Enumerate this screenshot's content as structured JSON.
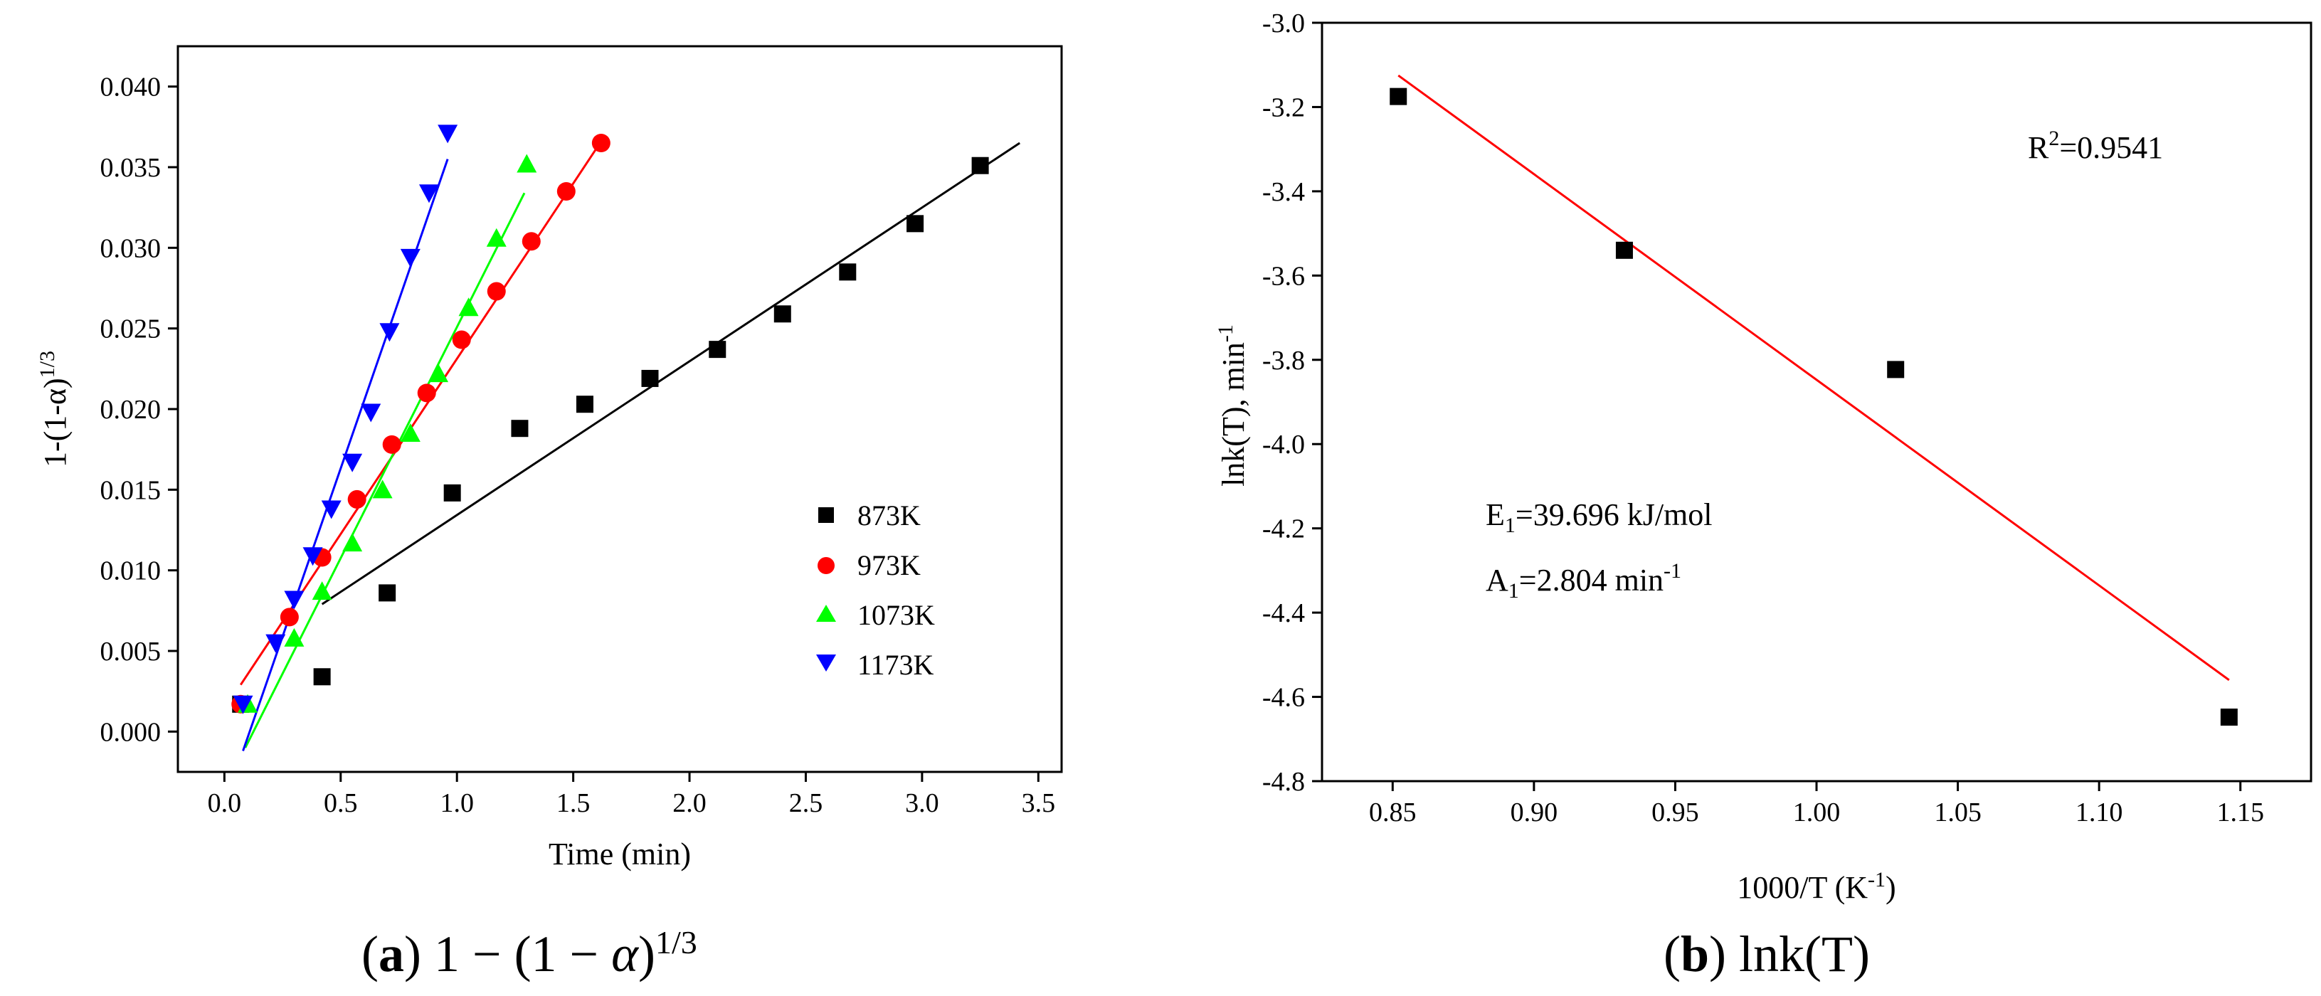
{
  "chart_data": [
    {
      "type": "scatter",
      "panel": "a",
      "xlabel": "Time (min)",
      "ylabel_base": "1-(1-α)",
      "ylabel_sup": "1/3",
      "xlim": [
        -0.2,
        3.6
      ],
      "ylim": [
        -0.0025,
        0.0425
      ],
      "xticks": [
        "0.0",
        "0.5",
        "1.0",
        "1.5",
        "2.0",
        "2.5",
        "3.0",
        "3.5"
      ],
      "yticks": [
        "0.000",
        "0.005",
        "0.010",
        "0.015",
        "0.020",
        "0.025",
        "0.030",
        "0.035",
        "0.040"
      ],
      "series": [
        {
          "name": "873K",
          "marker": "square",
          "color": "#000000",
          "x": [
            0.07,
            0.42,
            0.7,
            0.98,
            1.27,
            1.55,
            1.83,
            2.12,
            2.4,
            2.68,
            2.97,
            3.25
          ],
          "y": [
            0.0017,
            0.0034,
            0.0086,
            0.0148,
            0.0188,
            0.0203,
            0.0219,
            0.0237,
            0.0259,
            0.0285,
            0.0315,
            0.0351
          ],
          "fit": {
            "x": [
              0.42,
              3.42
            ],
            "y": [
              0.0079,
              0.0365
            ]
          }
        },
        {
          "name": "973K",
          "marker": "circle",
          "color": "#ff0000",
          "x": [
            0.07,
            0.28,
            0.42,
            0.57,
            0.72,
            0.87,
            1.02,
            1.17,
            1.32,
            1.47,
            1.62
          ],
          "y": [
            0.0017,
            0.0071,
            0.0108,
            0.0144,
            0.0178,
            0.021,
            0.0243,
            0.0273,
            0.0304,
            0.0335,
            0.0365
          ],
          "fit": {
            "x": [
              0.07,
              1.62
            ],
            "y": [
              0.0029,
              0.0366
            ]
          }
        },
        {
          "name": "1073K",
          "marker": "triangle-up",
          "color": "#00ff00",
          "x": [
            0.1,
            0.3,
            0.42,
            0.55,
            0.68,
            0.8,
            0.92,
            1.05,
            1.17,
            1.3
          ],
          "y": [
            0.0017,
            0.0058,
            0.0087,
            0.0117,
            0.015,
            0.0185,
            0.0222,
            0.0263,
            0.0306,
            0.0352
          ],
          "fit": {
            "x": [
              0.09,
              1.29
            ],
            "y": [
              -0.001,
              0.0334
            ]
          }
        },
        {
          "name": "1173K",
          "marker": "triangle-down",
          "color": "#0000ff",
          "x": [
            0.08,
            0.22,
            0.3,
            0.38,
            0.46,
            0.55,
            0.63,
            0.71,
            0.8,
            0.88,
            0.96
          ],
          "y": [
            0.0017,
            0.0055,
            0.0082,
            0.0109,
            0.0138,
            0.0167,
            0.0198,
            0.0248,
            0.0294,
            0.0334,
            0.0371
          ],
          "fit": {
            "x": [
              0.08,
              0.96
            ],
            "y": [
              -0.0012,
              0.0355
            ]
          }
        }
      ],
      "legend": {
        "position": "center-right",
        "entries": [
          "873K",
          "973K",
          "1073K",
          "1173K"
        ]
      }
    },
    {
      "type": "scatter",
      "panel": "b",
      "xlabel_base": "1000/T (K",
      "xlabel_sup": "-1",
      "xlabel_end": ")",
      "ylabel_base": "lnk(T), min",
      "ylabel_sup": "-1",
      "xlim": [
        0.825,
        1.175
      ],
      "ylim": [
        -4.8,
        -3.0
      ],
      "xticks": [
        "0.85",
        "0.90",
        "0.95",
        "1.00",
        "1.05",
        "1.10",
        "1.15"
      ],
      "yticks": [
        "-3.0",
        "-3.2",
        "-3.4",
        "-3.6",
        "-3.8",
        "-4.0",
        "-4.2",
        "-4.4",
        "-4.6",
        "-4.8"
      ],
      "series": [
        {
          "name": "lnk(T)",
          "marker": "square",
          "color": "#000000",
          "x": [
            0.852,
            0.932,
            1.028,
            1.146
          ],
          "y": [
            -3.175,
            -3.54,
            -3.823,
            -4.648
          ],
          "fit": {
            "x": [
              0.852,
              1.146
            ],
            "y": [
              -3.125,
              -4.56
            ],
            "color": "#ff0000"
          }
        }
      ],
      "annotations": {
        "r2_base": "R",
        "r2_sup": "2",
        "r2_val": "=0.9541",
        "e1_base": "E",
        "e1_sub": "1",
        "e1_val": "=39.696 kJ/mol",
        "a1_base": "A",
        "a1_sub": "1",
        "a1_val": "=2.804 min",
        "a1_sup": "-1"
      }
    }
  ],
  "captions": {
    "a_letter": "a",
    "a_text": "1 − (1 − ",
    "a_alpha": "α",
    "a_close": ")",
    "a_sup": "1/3",
    "b_letter": "b",
    "b_text": "lnk(T)"
  }
}
